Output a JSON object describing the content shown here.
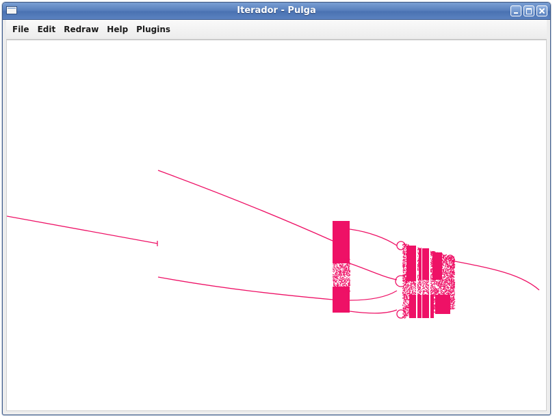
{
  "window": {
    "title": "Iterador - Pulga",
    "controls": {
      "minimize": "minimize",
      "maximize": "maximize",
      "close": "close"
    }
  },
  "menubar": {
    "items": [
      "File",
      "Edit",
      "Redraw",
      "Help",
      "Plugins"
    ]
  },
  "plot": {
    "color": "#ee1166",
    "background": "#ffffff"
  }
}
